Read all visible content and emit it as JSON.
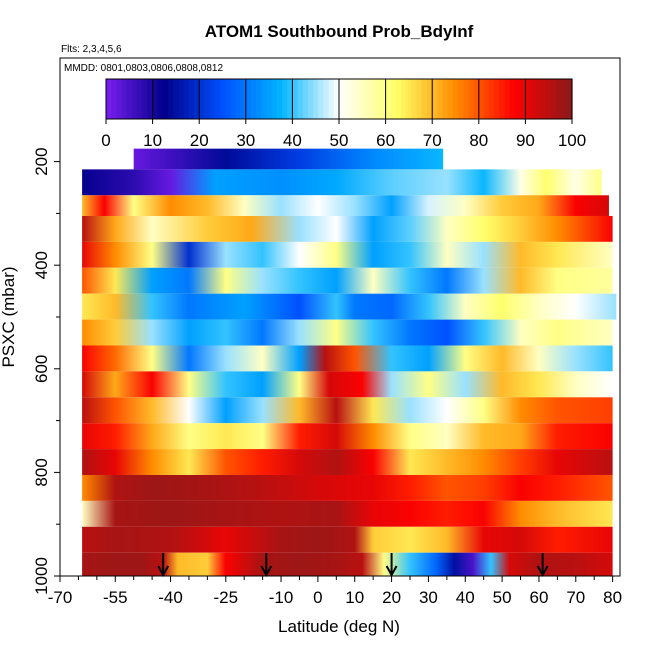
{
  "chart_data": {
    "type": "heatmap",
    "title": "ATOM1 Southbound Prob_BdyInf",
    "subtitle_flights": "Flts: 2,3,4,5,6",
    "subtitle_dates": "MMDD: 0801,0803,0806,0808,0812",
    "xlabel": "Latitude (deg N)",
    "ylabel": "PSXC (mbar)",
    "xlim": [
      -70,
      82
    ],
    "ylim": [
      1000,
      0
    ],
    "x_tick_labels": [
      {
        "value": -70,
        "label": "-70"
      },
      {
        "value": -55,
        "label": "-55"
      },
      {
        "value": -40,
        "label": "-40"
      },
      {
        "value": -25,
        "label": "-25"
      },
      {
        "value": -10,
        "label": "-10"
      },
      {
        "value": 0,
        "label": "0"
      },
      {
        "value": 10,
        "label": "10"
      },
      {
        "value": 20,
        "label": "20"
      },
      {
        "value": 30,
        "label": "30"
      },
      {
        "value": 40,
        "label": "40"
      },
      {
        "value": 50,
        "label": "50"
      },
      {
        "value": 60,
        "label": "60"
      },
      {
        "value": 70,
        "label": "70"
      },
      {
        "value": 80,
        "label": "80"
      }
    ],
    "x_minor_ticks": [
      -65,
      -60,
      -50,
      -45,
      -35,
      -30,
      -20,
      -15,
      -5,
      5,
      15,
      25,
      35,
      45,
      55,
      65,
      75
    ],
    "y_tick_labels": [
      {
        "value": 200,
        "label": "200"
      },
      {
        "value": 400,
        "label": "400"
      },
      {
        "value": 600,
        "label": "600"
      },
      {
        "value": 800,
        "label": "800"
      },
      {
        "value": 1000,
        "label": "1000"
      }
    ],
    "y_minor_ticks": [
      300,
      500,
      700,
      900
    ],
    "colorbar": {
      "min": 0,
      "max": 100,
      "tick_labels": [
        "0",
        "10",
        "20",
        "30",
        "40",
        "50",
        "60",
        "70",
        "80",
        "90",
        "100"
      ],
      "stops": [
        "#7a1ef0",
        "#00008a",
        "#0050ff",
        "#00b4ff",
        "#ffffff",
        "#ffff66",
        "#ff8c00",
        "#ff0000",
        "#8b1a1a"
      ]
    },
    "profile_arrows_latitude": [
      -42,
      -14,
      20,
      61
    ],
    "pressure_bins": [
      {
        "p_top": 175,
        "p_bot": 215,
        "x_start": -50,
        "x_end": 34,
        "knots": [
          [
            -50,
            2
          ],
          [
            -40,
            6
          ],
          [
            -25,
            14
          ],
          [
            -5,
            22
          ],
          [
            15,
            32
          ],
          [
            34,
            38
          ]
        ]
      },
      {
        "p_top": 215,
        "p_bot": 265,
        "x_start": -64,
        "x_end": 77,
        "knots": [
          [
            -64,
            12
          ],
          [
            -50,
            8
          ],
          [
            -40,
            2
          ],
          [
            -28,
            35
          ],
          [
            -10,
            33
          ],
          [
            5,
            36
          ],
          [
            20,
            42
          ],
          [
            35,
            45
          ],
          [
            45,
            38
          ],
          [
            55,
            52
          ],
          [
            62,
            62
          ],
          [
            70,
            52
          ],
          [
            77,
            60
          ]
        ]
      },
      {
        "p_top": 265,
        "p_bot": 305,
        "x_start": -64,
        "x_end": 79,
        "knots": [
          [
            -64,
            70
          ],
          [
            -58,
            88
          ],
          [
            -50,
            60
          ],
          [
            -40,
            75
          ],
          [
            -30,
            70
          ],
          [
            -20,
            55
          ],
          [
            -10,
            45
          ],
          [
            0,
            50
          ],
          [
            10,
            45
          ],
          [
            20,
            35
          ],
          [
            30,
            48
          ],
          [
            40,
            55
          ],
          [
            50,
            68
          ],
          [
            60,
            72
          ],
          [
            70,
            88
          ],
          [
            79,
            92
          ]
        ]
      },
      {
        "p_top": 305,
        "p_bot": 355,
        "x_start": -64,
        "x_end": 80,
        "knots": [
          [
            -64,
            95
          ],
          [
            -55,
            72
          ],
          [
            -45,
            55
          ],
          [
            -30,
            68
          ],
          [
            -18,
            72
          ],
          [
            -5,
            45
          ],
          [
            5,
            50
          ],
          [
            15,
            35
          ],
          [
            25,
            42
          ],
          [
            35,
            55
          ],
          [
            45,
            62
          ],
          [
            55,
            68
          ],
          [
            65,
            75
          ],
          [
            80,
            88
          ]
        ]
      },
      {
        "p_top": 355,
        "p_bot": 405,
        "x_start": -64,
        "x_end": 80,
        "knots": [
          [
            -64,
            90
          ],
          [
            -55,
            75
          ],
          [
            -45,
            60
          ],
          [
            -35,
            20
          ],
          [
            -25,
            45
          ],
          [
            -15,
            40
          ],
          [
            -5,
            50
          ],
          [
            5,
            60
          ],
          [
            15,
            35
          ],
          [
            25,
            40
          ],
          [
            35,
            55
          ],
          [
            45,
            45
          ],
          [
            55,
            70
          ],
          [
            65,
            65
          ],
          [
            80,
            55
          ]
        ]
      },
      {
        "p_top": 405,
        "p_bot": 455,
        "x_start": -64,
        "x_end": 80,
        "knots": [
          [
            -64,
            80
          ],
          [
            -55,
            65
          ],
          [
            -45,
            35
          ],
          [
            -35,
            30
          ],
          [
            -25,
            60
          ],
          [
            -15,
            45
          ],
          [
            -5,
            40
          ],
          [
            5,
            35
          ],
          [
            15,
            55
          ],
          [
            25,
            40
          ],
          [
            35,
            30
          ],
          [
            45,
            45
          ],
          [
            55,
            70
          ],
          [
            65,
            60
          ],
          [
            80,
            58
          ]
        ]
      },
      {
        "p_top": 455,
        "p_bot": 505,
        "x_start": -64,
        "x_end": 81,
        "knots": [
          [
            -64,
            65
          ],
          [
            -55,
            70
          ],
          [
            -45,
            40
          ],
          [
            -35,
            30
          ],
          [
            -20,
            35
          ],
          [
            -5,
            25
          ],
          [
            5,
            40
          ],
          [
            10,
            30
          ],
          [
            20,
            28
          ],
          [
            30,
            40
          ],
          [
            40,
            55
          ],
          [
            50,
            62
          ],
          [
            60,
            55
          ],
          [
            70,
            50
          ],
          [
            81,
            45
          ]
        ]
      },
      {
        "p_top": 505,
        "p_bot": 555,
        "x_start": -64,
        "x_end": 80,
        "knots": [
          [
            -64,
            75
          ],
          [
            -55,
            68
          ],
          [
            -45,
            45
          ],
          [
            -35,
            35
          ],
          [
            -25,
            40
          ],
          [
            -15,
            30
          ],
          [
            -5,
            45
          ],
          [
            5,
            60
          ],
          [
            15,
            40
          ],
          [
            25,
            30
          ],
          [
            35,
            25
          ],
          [
            45,
            40
          ],
          [
            55,
            55
          ],
          [
            65,
            60
          ],
          [
            80,
            55
          ]
        ]
      },
      {
        "p_top": 555,
        "p_bot": 605,
        "x_start": -64,
        "x_end": 80,
        "knots": [
          [
            -64,
            88
          ],
          [
            -55,
            78
          ],
          [
            -45,
            60
          ],
          [
            -35,
            30
          ],
          [
            -25,
            45
          ],
          [
            -15,
            55
          ],
          [
            -5,
            35
          ],
          [
            2,
            95
          ],
          [
            10,
            80
          ],
          [
            20,
            40
          ],
          [
            30,
            35
          ],
          [
            40,
            60
          ],
          [
            50,
            70
          ],
          [
            60,
            55
          ],
          [
            70,
            45
          ],
          [
            80,
            40
          ]
        ]
      },
      {
        "p_top": 605,
        "p_bot": 655,
        "x_start": -64,
        "x_end": 80,
        "knots": [
          [
            -64,
            92
          ],
          [
            -55,
            72
          ],
          [
            -45,
            88
          ],
          [
            -35,
            60
          ],
          [
            -25,
            40
          ],
          [
            -15,
            35
          ],
          [
            -5,
            60
          ],
          [
            3,
            92
          ],
          [
            12,
            88
          ],
          [
            20,
            45
          ],
          [
            30,
            60
          ],
          [
            40,
            45
          ],
          [
            50,
            70
          ],
          [
            60,
            65
          ],
          [
            70,
            55
          ],
          [
            80,
            50
          ]
        ]
      },
      {
        "p_top": 655,
        "p_bot": 705,
        "x_start": -64,
        "x_end": 80,
        "knots": [
          [
            -64,
            95
          ],
          [
            -55,
            80
          ],
          [
            -45,
            70
          ],
          [
            -35,
            50
          ],
          [
            -25,
            35
          ],
          [
            -15,
            45
          ],
          [
            -5,
            70
          ],
          [
            5,
            95
          ],
          [
            15,
            65
          ],
          [
            25,
            45
          ],
          [
            35,
            50
          ],
          [
            45,
            60
          ],
          [
            55,
            75
          ],
          [
            65,
            80
          ],
          [
            80,
            82
          ]
        ]
      },
      {
        "p_top": 705,
        "p_bot": 755,
        "x_start": -64,
        "x_end": 80,
        "knots": [
          [
            -64,
            90
          ],
          [
            -55,
            85
          ],
          [
            -45,
            72
          ],
          [
            -35,
            60
          ],
          [
            -25,
            65
          ],
          [
            -15,
            60
          ],
          [
            -5,
            85
          ],
          [
            5,
            92
          ],
          [
            15,
            75
          ],
          [
            25,
            60
          ],
          [
            35,
            55
          ],
          [
            45,
            70
          ],
          [
            55,
            72
          ],
          [
            65,
            85
          ],
          [
            80,
            88
          ]
        ]
      },
      {
        "p_top": 755,
        "p_bot": 805,
        "x_start": -64,
        "x_end": 80,
        "knots": [
          [
            -64,
            96
          ],
          [
            -55,
            90
          ],
          [
            -45,
            75
          ],
          [
            -35,
            65
          ],
          [
            -25,
            80
          ],
          [
            -15,
            85
          ],
          [
            -5,
            92
          ],
          [
            5,
            96
          ],
          [
            15,
            88
          ],
          [
            25,
            65
          ],
          [
            35,
            70
          ],
          [
            45,
            75
          ],
          [
            55,
            82
          ],
          [
            65,
            90
          ],
          [
            80,
            95
          ]
        ]
      },
      {
        "p_top": 805,
        "p_bot": 855,
        "x_start": -64,
        "x_end": 80,
        "knots": [
          [
            -64,
            75
          ],
          [
            -55,
            96
          ],
          [
            -45,
            98
          ],
          [
            -30,
            97
          ],
          [
            -15,
            95
          ],
          [
            0,
            92
          ],
          [
            15,
            90
          ],
          [
            25,
            85
          ],
          [
            35,
            80
          ],
          [
            45,
            82
          ],
          [
            55,
            88
          ],
          [
            65,
            85
          ],
          [
            80,
            80
          ]
        ]
      },
      {
        "p_top": 855,
        "p_bot": 905,
        "x_start": -64,
        "x_end": 80,
        "knots": [
          [
            -64,
            55
          ],
          [
            -55,
            97
          ],
          [
            -40,
            98
          ],
          [
            -25,
            97
          ],
          [
            -10,
            96
          ],
          [
            5,
            97
          ],
          [
            15,
            90
          ],
          [
            25,
            88
          ],
          [
            35,
            85
          ],
          [
            45,
            88
          ],
          [
            55,
            75
          ],
          [
            65,
            70
          ],
          [
            80,
            65
          ]
        ]
      },
      {
        "p_top": 905,
        "p_bot": 955,
        "x_start": -64,
        "x_end": 80,
        "knots": [
          [
            -64,
            95
          ],
          [
            -55,
            97
          ],
          [
            -40,
            96
          ],
          [
            -25,
            90
          ],
          [
            -10,
            97
          ],
          [
            0,
            98
          ],
          [
            10,
            96
          ],
          [
            15,
            68
          ],
          [
            25,
            65
          ],
          [
            35,
            70
          ],
          [
            45,
            90
          ],
          [
            55,
            92
          ],
          [
            65,
            85
          ],
          [
            80,
            90
          ]
        ]
      },
      {
        "p_top": 955,
        "p_bot": 1000,
        "x_start": -64,
        "x_end": 80,
        "knots": [
          [
            -64,
            97
          ],
          [
            -55,
            98
          ],
          [
            -48,
            98
          ],
          [
            -42,
            95
          ],
          [
            -38,
            70
          ],
          [
            -30,
            68
          ],
          [
            -25,
            88
          ],
          [
            -15,
            97
          ],
          [
            -5,
            98
          ],
          [
            5,
            97
          ],
          [
            12,
            95
          ],
          [
            18,
            60
          ],
          [
            25,
            40
          ],
          [
            32,
            28
          ],
          [
            37,
            15
          ],
          [
            42,
            5
          ],
          [
            47,
            40
          ],
          [
            52,
            92
          ],
          [
            60,
            96
          ],
          [
            70,
            95
          ],
          [
            80,
            92
          ]
        ]
      }
    ]
  }
}
